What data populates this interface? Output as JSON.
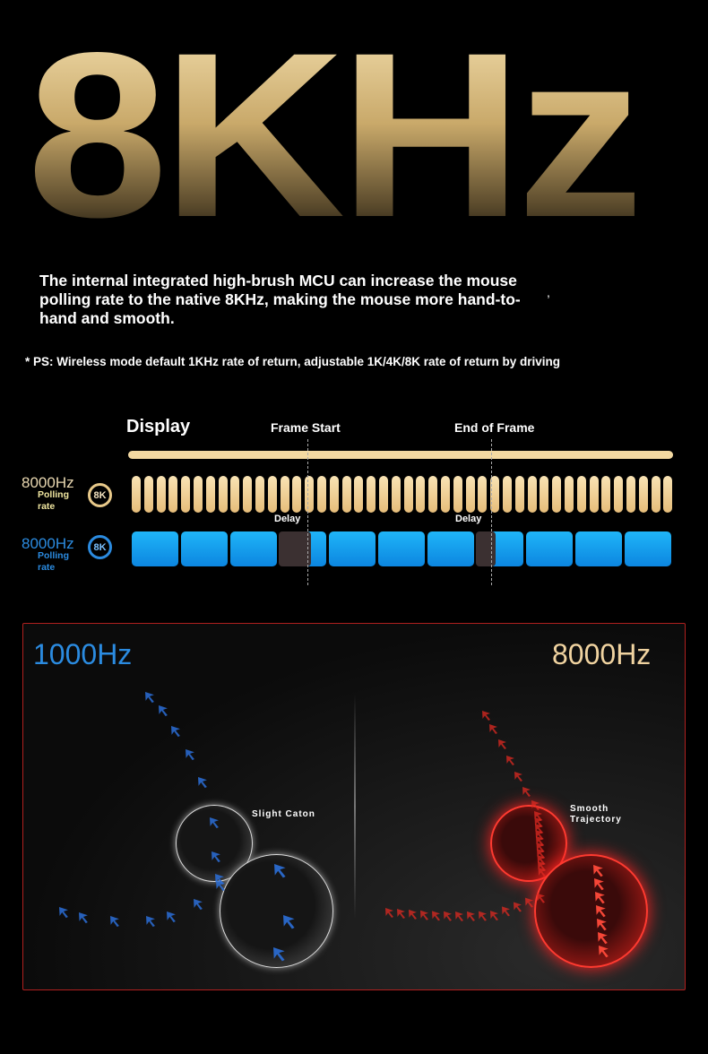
{
  "hero_title": "8KHz",
  "intro": "The internal integrated high-brush MCU can increase the mouse polling rate to the native 8KHz, making the mouse more hand-to-hand and smooth.",
  "stray_mark": ",",
  "note": "* PS: Wireless mode default 1KHz rate of return, adjustable 1K/4K/8K rate of return by driving",
  "timeline": {
    "display_label": "Display",
    "frame_start": "Frame Start",
    "end_of_frame": "End of Frame",
    "delay_label": "Delay",
    "rows": [
      {
        "rate": "8000Hz",
        "sub": "Polling rate",
        "badge": "8K",
        "color": "#e8c98a"
      },
      {
        "rate": "8000Hz",
        "sub": "Polling rate",
        "badge": "8K",
        "color": "#2b8be0"
      }
    ]
  },
  "comparison": {
    "left": {
      "title": "1000Hz",
      "caption": "Slight Caton",
      "color": "#2b6fd8"
    },
    "right": {
      "title": "8000Hz",
      "caption": "Smooth Trajectory",
      "color": "#e02a22"
    }
  }
}
